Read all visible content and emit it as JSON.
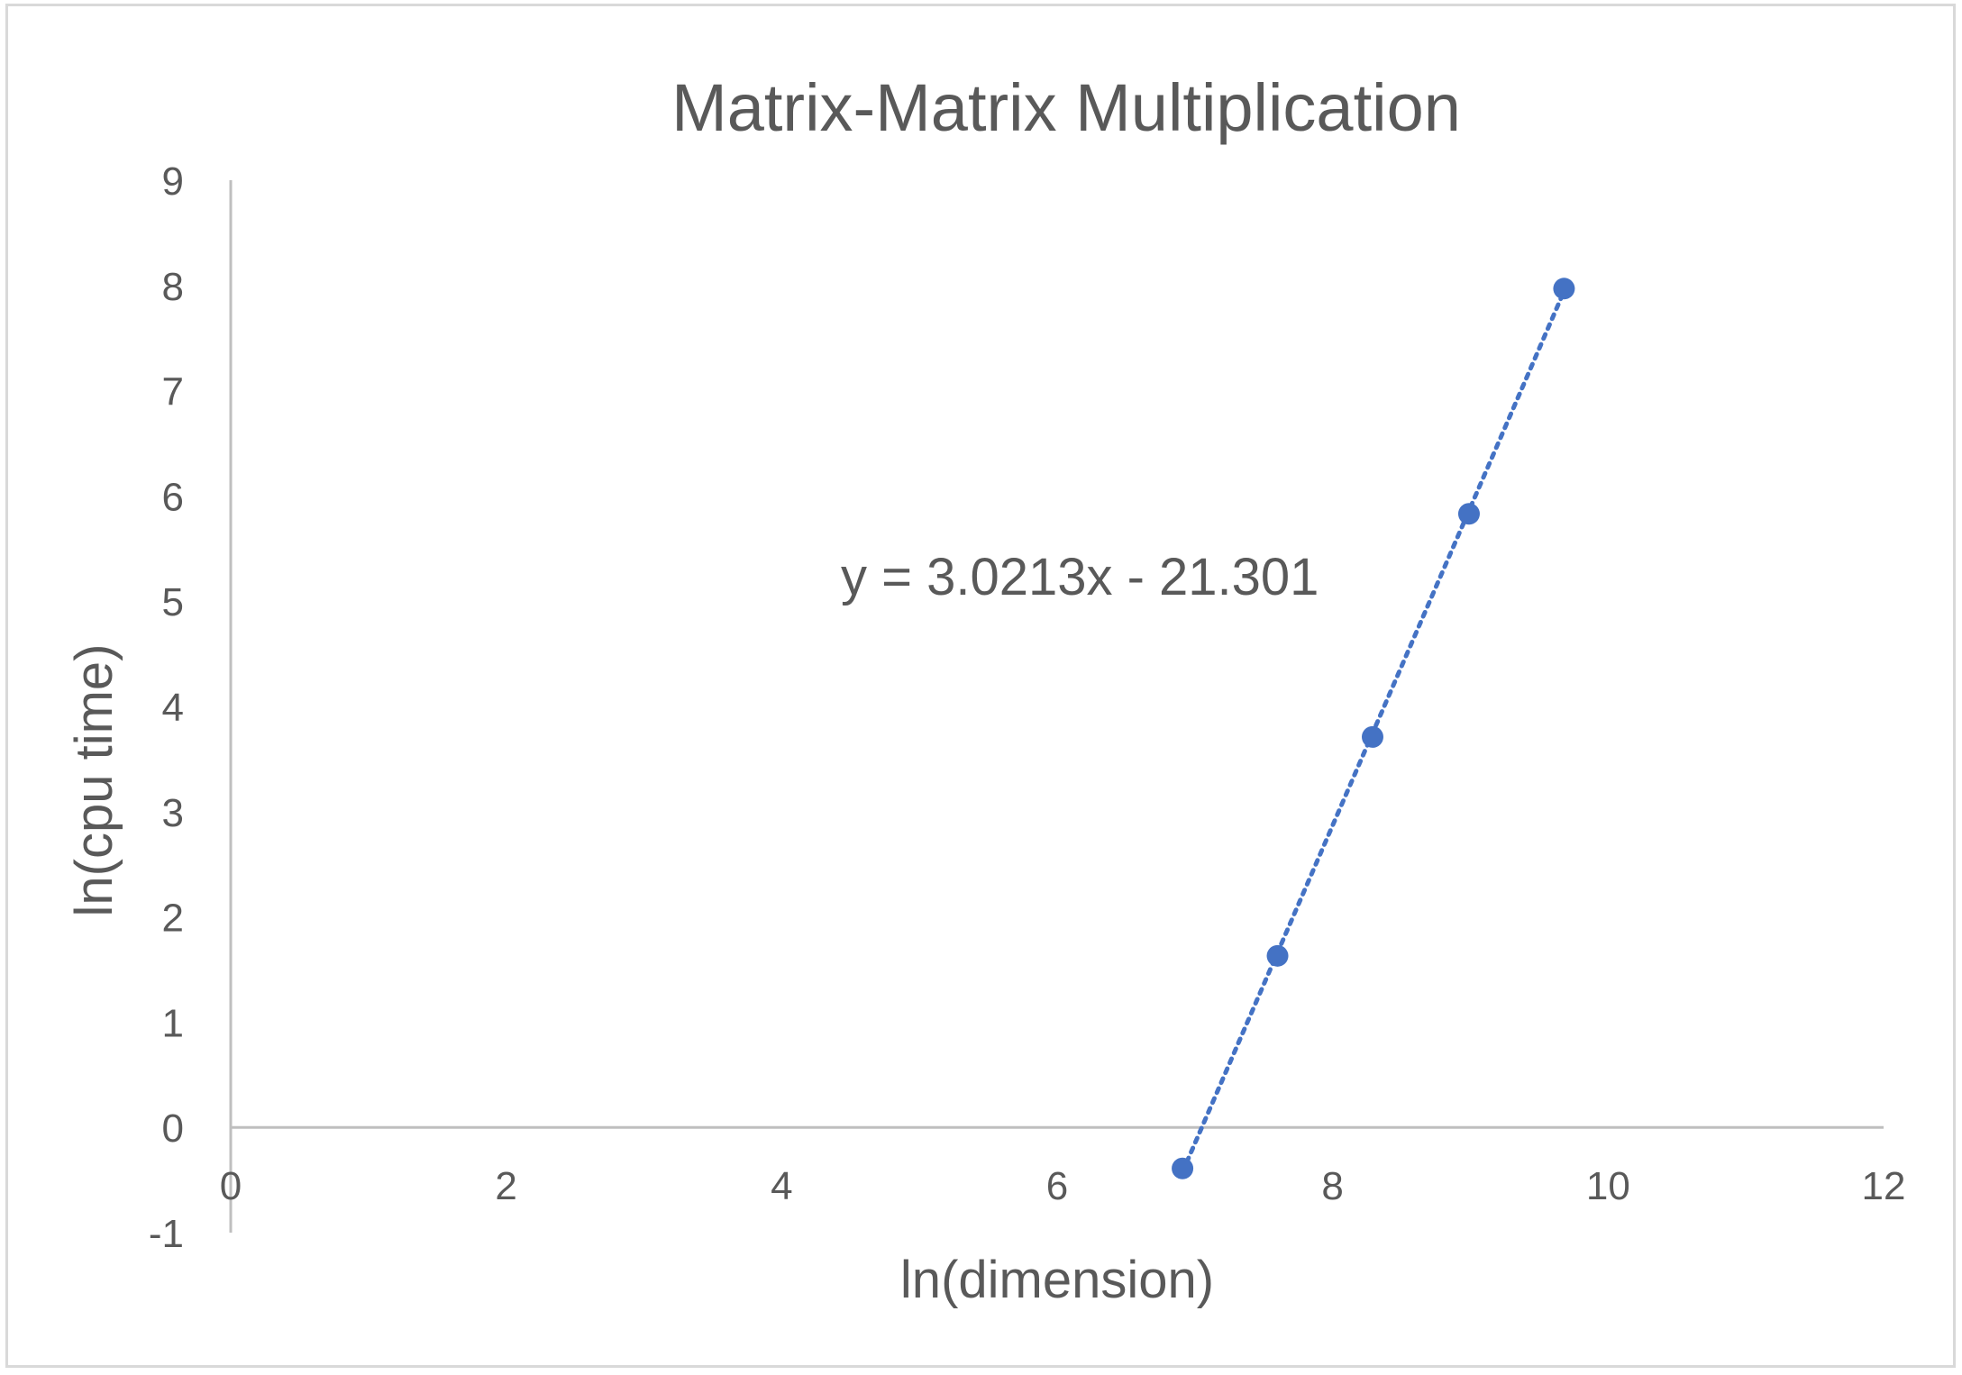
{
  "chart_data": {
    "type": "scatter",
    "title": "Matrix-Matrix Multiplication",
    "xlabel": "ln(dimension)",
    "ylabel": "ln(cpu time)",
    "xlim": [
      0,
      12
    ],
    "ylim": [
      -1,
      9
    ],
    "xticks": [
      0,
      2,
      4,
      6,
      8,
      10,
      12
    ],
    "yticks": [
      -1,
      0,
      1,
      2,
      3,
      4,
      5,
      6,
      7,
      8,
      9
    ],
    "grid": false,
    "legend": "none",
    "series": [
      {
        "color": "#4472c4",
        "points": [
          {
            "x": 6.91,
            "y": -0.39
          },
          {
            "x": 7.6,
            "y": 1.63
          },
          {
            "x": 8.29,
            "y": 3.71
          },
          {
            "x": 8.99,
            "y": 5.83
          },
          {
            "x": 9.68,
            "y": 7.97
          }
        ]
      }
    ],
    "trendline": {
      "type": "linear",
      "style": "dotted",
      "color": "#4472c4",
      "slope": 3.0213,
      "intercept": -21.301,
      "x_range": [
        6.91,
        9.68
      ],
      "equation_label": "y = 3.0213x - 21.301"
    }
  }
}
